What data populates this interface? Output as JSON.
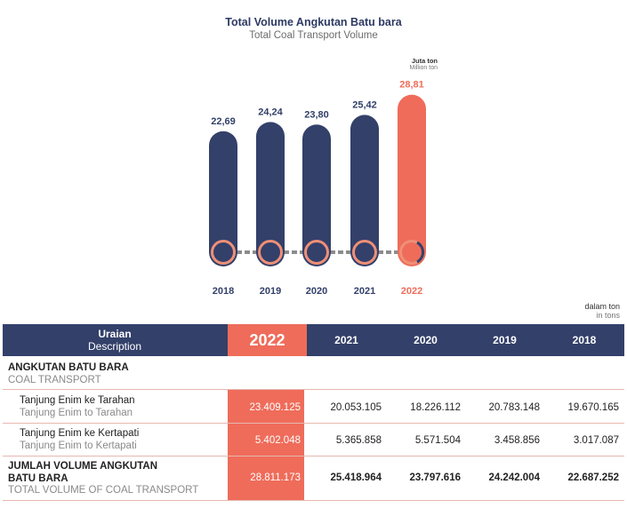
{
  "chart_data": {
    "type": "bar",
    "title": "Total Volume Angkutan Batu bara",
    "subtitle": "Total Coal Transport Volume",
    "unit_main": "Juta ton",
    "unit_sub": "Million ton",
    "categories": [
      "2018",
      "2019",
      "2020",
      "2021",
      "2022"
    ],
    "values": [
      22.69,
      24.24,
      23.8,
      25.42,
      28.81
    ],
    "value_labels": [
      "22,69",
      "24,24",
      "23,80",
      "25,42",
      "28,81"
    ],
    "highlight_index": 4,
    "ylim": [
      0,
      30
    ],
    "colors": {
      "bar": "#33406a",
      "highlight": "#ef6c5a",
      "circle_ring": "#ef8f76",
      "connector": "#8c8c8c"
    }
  },
  "table": {
    "unit_main": "dalam ton",
    "unit_sub": "in tons",
    "header": {
      "desc_main": "Uraian",
      "desc_sub": "Description",
      "years": [
        "2022",
        "2021",
        "2020",
        "2019",
        "2018"
      ]
    },
    "section": {
      "title": "ANGKUTAN BATU BARA",
      "subtitle": "COAL TRANSPORT"
    },
    "rows": [
      {
        "main": "Tanjung Enim ke Tarahan",
        "sub": "Tanjung Enim to Tarahan",
        "values": [
          "23.409.125",
          "20.053.105",
          "18.226.112",
          "20.783.148",
          "19.670.165"
        ]
      },
      {
        "main": "Tanjung Enim ke Kertapati",
        "sub": "Tanjung Enim to Kertapati",
        "values": [
          "5.402.048",
          "5.365.858",
          "5.571.504",
          "3.458.856",
          "3.017.087"
        ]
      }
    ],
    "total": {
      "main_line1": "JUMLAH VOLUME ANGKUTAN",
      "main_line2": "BATU BARA",
      "sub": "TOTAL VOLUME OF COAL TRANSPORT",
      "values": [
        "28.811.173",
        "25.418.964",
        "23.797.616",
        "24.242.004",
        "22.687.252"
      ]
    },
    "colors": {
      "header_bg": "#33406a",
      "highlight": "#ef6c5a"
    }
  }
}
